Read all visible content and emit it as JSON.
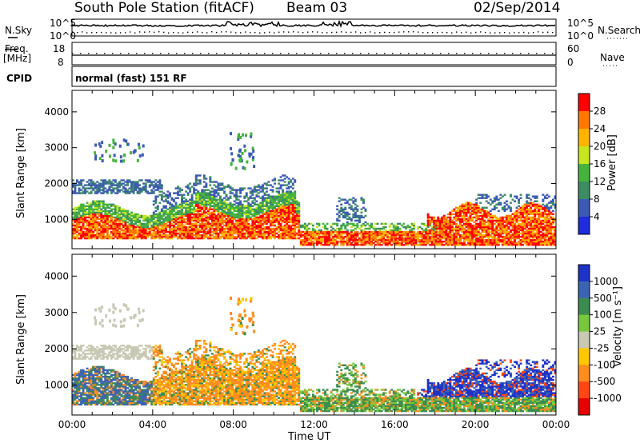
{
  "header": {
    "station": "South Pole Station (fitACF)",
    "beam": "Beam 03",
    "date": "02/Sep/2014"
  },
  "panels": {
    "nsky_label": "N.Sky",
    "nsearch_label": "N.Search",
    "freq_label_line1": "Freq.",
    "freq_label_line2": "[MHz]",
    "cpid_label": "CPID",
    "nave_label": "Nave",
    "cpid_text": "normal (fast) 151 RF",
    "nsky_ticks": [
      "10^5",
      "10^0"
    ],
    "nsearch_ticks": [
      "10^5",
      "10^0"
    ],
    "freq_ticks": [
      "18",
      "8"
    ],
    "nave_ticks": [
      "60",
      "0"
    ]
  },
  "chart_data": [
    {
      "type": "heatmap",
      "name": "power",
      "ylabel": "Slant Range [km]",
      "xlabel": "Time UT",
      "xticks": [
        "00:00",
        "04:00",
        "08:00",
        "12:00",
        "16:00",
        "20:00",
        "00:00"
      ],
      "xlim_hours": [
        0,
        24
      ],
      "ylim_km": [
        180,
        4600
      ],
      "yticks": [
        1000,
        2000,
        3000,
        4000
      ],
      "colorbar": {
        "label": "Power [dB]",
        "ticks": [
          "28",
          "24",
          "20",
          "16",
          "12",
          "8",
          "4"
        ],
        "colors": [
          "#ff0000",
          "#ff7800",
          "#ffb400",
          "#c8e61e",
          "#46b43c",
          "#3c8c64",
          "#3c5ab4",
          "#1e2cdc"
        ]
      },
      "features": [
        {
          "t0": 0.0,
          "t1": 11.0,
          "r0": 500,
          "r1": 1550,
          "level": "strong"
        },
        {
          "t0": 0.0,
          "t1": 4.5,
          "r0": 1600,
          "r1": 2100,
          "level": "weak"
        },
        {
          "t0": 7.8,
          "t1": 9.0,
          "r0": 2400,
          "r1": 3400,
          "level": "medium"
        },
        {
          "t0": 11.5,
          "t1": 24.0,
          "r0": 250,
          "r1": 700,
          "level": "strong"
        },
        {
          "t0": 18.0,
          "t1": 24.0,
          "r0": 450,
          "r1": 1500,
          "level": "strong"
        }
      ]
    },
    {
      "type": "heatmap",
      "name": "velocity",
      "ylabel": "Slant Range [km]",
      "xlabel": "Time UT",
      "xticks": [
        "00:00",
        "04:00",
        "08:00",
        "12:00",
        "16:00",
        "20:00",
        "00:00"
      ],
      "xlim_hours": [
        0,
        24
      ],
      "ylim_km": [
        180,
        4600
      ],
      "yticks": [
        1000,
        2000,
        3000,
        4000
      ],
      "colorbar": {
        "label": "Velocity [m s⁻¹]",
        "ticks": [
          "1000",
          "500",
          "100",
          "25",
          "-25",
          "-100",
          "-500",
          "-1000"
        ],
        "colors": [
          "#1e32c8",
          "#3c64b4",
          "#3c8c50",
          "#78c83c",
          "#c8c8b4",
          "#ffc800",
          "#ff8c1e",
          "#ff4614",
          "#e60000"
        ]
      },
      "features": [
        {
          "t0": 0.0,
          "t1": 4.0,
          "r0": 500,
          "r1": 1400,
          "level": "toward"
        },
        {
          "t0": 4.0,
          "t1": 11.0,
          "r0": 700,
          "r1": 1800,
          "level": "away"
        },
        {
          "t0": 0.0,
          "t1": 4.0,
          "r0": 1700,
          "r1": 2100,
          "level": "near-zero"
        },
        {
          "t0": 11.0,
          "t1": 24.0,
          "r0": 250,
          "r1": 800,
          "level": "toward-slow"
        },
        {
          "t0": 17.0,
          "t1": 24.0,
          "r0": 700,
          "r1": 1300,
          "level": "toward"
        }
      ]
    }
  ]
}
